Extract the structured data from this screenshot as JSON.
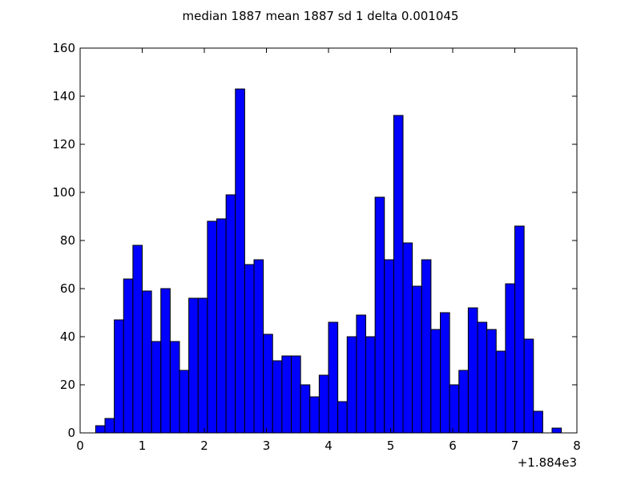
{
  "chart_data": {
    "type": "bar",
    "title": "median 1887 mean 1887 sd 1 delta 0.001045",
    "xlabel": "",
    "ylabel": "",
    "x_offset_label": "+1.884e3",
    "xlim": [
      0,
      8
    ],
    "ylim": [
      0,
      160
    ],
    "xticks": [
      0,
      1,
      2,
      3,
      4,
      5,
      6,
      7,
      8
    ],
    "yticks": [
      0,
      20,
      40,
      60,
      80,
      100,
      120,
      140,
      160
    ],
    "bin_start": 0.25,
    "bin_width": 0.15,
    "values": [
      3,
      6,
      47,
      64,
      78,
      59,
      38,
      60,
      38,
      26,
      56,
      56,
      88,
      89,
      99,
      143,
      70,
      72,
      41,
      30,
      32,
      32,
      20,
      15,
      24,
      46,
      13,
      40,
      49,
      40,
      98,
      72,
      132,
      79,
      61,
      72,
      43,
      50,
      20,
      26,
      52,
      46,
      43,
      34,
      62,
      86,
      39,
      9,
      0,
      2
    ],
    "bar_color": "#0000ff",
    "grid": false,
    "legend": "none"
  }
}
